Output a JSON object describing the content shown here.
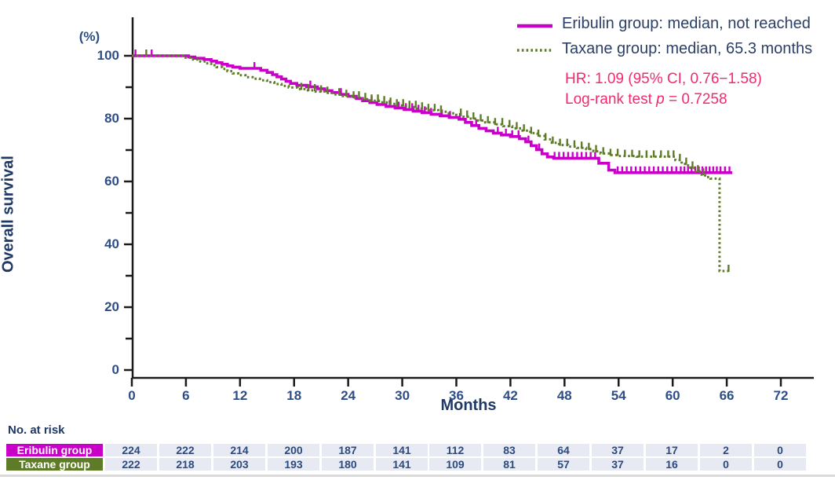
{
  "legend": {
    "items": [
      {
        "label": "Eribulin group: median, not reached"
      },
      {
        "label": "Taxane group: median, 65.3 months"
      }
    ]
  },
  "stats": {
    "hr": "HR: 1.09 (95% CI, 0.76−1.58)",
    "logrank_prefix": "Log-rank test ",
    "logrank_p": "p",
    "logrank_suffix": " = 0.7258"
  },
  "chart_data": {
    "type": "line",
    "subtype": "kaplan-meier-step",
    "ylabel": "Overall survival",
    "y_unit": "(%)",
    "xlabel": "Months",
    "xlim": [
      0,
      72
    ],
    "ylim": [
      0,
      100
    ],
    "x_ticks": [
      0,
      6,
      12,
      18,
      24,
      30,
      36,
      42,
      48,
      54,
      60,
      66,
      72
    ],
    "y_ticks": [
      0,
      20,
      40,
      60,
      80,
      100
    ],
    "y_minor_ticks": [
      10,
      30,
      50,
      70,
      90
    ],
    "grid": false,
    "legend_position": "top-right",
    "series": [
      {
        "name": "Eribulin group",
        "median": "not reached",
        "color": "#c800c8",
        "line_style": "solid",
        "steps": [
          [
            0,
            100
          ],
          [
            6.3,
            99.6
          ],
          [
            7,
            99.2
          ],
          [
            8,
            98.8
          ],
          [
            8.8,
            98.3
          ],
          [
            9.4,
            97.8
          ],
          [
            10,
            97.3
          ],
          [
            10.6,
            96.8
          ],
          [
            11.2,
            96.4
          ],
          [
            12,
            96
          ],
          [
            14.3,
            95.4
          ],
          [
            15,
            94.7
          ],
          [
            15.6,
            94
          ],
          [
            16.1,
            93.3
          ],
          [
            16.6,
            92.6
          ],
          [
            17.1,
            91.9
          ],
          [
            17.6,
            91.2
          ],
          [
            18.3,
            90.6
          ],
          [
            19.4,
            90.1
          ],
          [
            20.6,
            89.5
          ],
          [
            21.4,
            88.9
          ],
          [
            22.2,
            88.3
          ],
          [
            23.1,
            87.7
          ],
          [
            24,
            87.1
          ],
          [
            24.9,
            86.4
          ],
          [
            25.6,
            85.7
          ],
          [
            26.4,
            85.1
          ],
          [
            27.2,
            84.5
          ],
          [
            28.2,
            83.9
          ],
          [
            29.2,
            83.4
          ],
          [
            30.2,
            82.9
          ],
          [
            31.2,
            82.4
          ],
          [
            32.2,
            81.9
          ],
          [
            33.2,
            81.4
          ],
          [
            34.2,
            80.9
          ],
          [
            35.2,
            80.4
          ],
          [
            36.3,
            79.8
          ],
          [
            37,
            78.8
          ],
          [
            37.7,
            77.8
          ],
          [
            38.5,
            76.9
          ],
          [
            39.3,
            76.1
          ],
          [
            40.1,
            75.4
          ],
          [
            41,
            74.8
          ],
          [
            42,
            74.3
          ],
          [
            43,
            73.6
          ],
          [
            43.7,
            72.6
          ],
          [
            44.3,
            71.4
          ],
          [
            44.9,
            70.1
          ],
          [
            45.5,
            68.8
          ],
          [
            46.1,
            67.8
          ],
          [
            46.8,
            67.4
          ],
          [
            51.8,
            65.8
          ],
          [
            52.9,
            63.6
          ],
          [
            53.6,
            62.8
          ],
          [
            66.6,
            62.8
          ]
        ],
        "censors": [
          0.4,
          2.2,
          13.6,
          19.8,
          23.2,
          26.6,
          28.6,
          29.6,
          30.4,
          31.1,
          31.8,
          32.5,
          33.2,
          34.4,
          35.3,
          36.4,
          38.2,
          40.6,
          41.5,
          42.2,
          42.9,
          44,
          45.2,
          46.9,
          47.4,
          47.9,
          48.4,
          48.9,
          49.4,
          49.9,
          50.4,
          50.9,
          51.4,
          53.9,
          54.4,
          54.9,
          55.4,
          55.9,
          56.4,
          56.9,
          57.4,
          57.9,
          58.4,
          58.9,
          59.4,
          59.9,
          60.4,
          60.9,
          61.3,
          61.7,
          62.1,
          62.5,
          62.9,
          63.3,
          63.7,
          64.1,
          64.5,
          64.9,
          65.3,
          65.8,
          66.3
        ]
      },
      {
        "name": "Taxane group",
        "median": "65.3 months",
        "color": "#5e7c28",
        "line_style": "dotted",
        "steps": [
          [
            0,
            100
          ],
          [
            5.8,
            99.4
          ],
          [
            6.8,
            98.8
          ],
          [
            7.6,
            98.2
          ],
          [
            8.2,
            97.6
          ],
          [
            8.8,
            97
          ],
          [
            9.4,
            96.4
          ],
          [
            10,
            95.8
          ],
          [
            10.6,
            95.1
          ],
          [
            11.2,
            94.4
          ],
          [
            11.8,
            93.8
          ],
          [
            12.6,
            93.2
          ],
          [
            13.4,
            92.7
          ],
          [
            14.2,
            92.2
          ],
          [
            15,
            91.6
          ],
          [
            15.8,
            91
          ],
          [
            16.6,
            90.4
          ],
          [
            17.4,
            89.9
          ],
          [
            18.4,
            89.4
          ],
          [
            19.4,
            89
          ],
          [
            20.4,
            88.6
          ],
          [
            21.4,
            88.2
          ],
          [
            22.4,
            87.7
          ],
          [
            23.4,
            87.2
          ],
          [
            24.4,
            86.7
          ],
          [
            25.4,
            86.2
          ],
          [
            26.4,
            85.7
          ],
          [
            27.4,
            85.2
          ],
          [
            28.4,
            84.7
          ],
          [
            29.4,
            84.2
          ],
          [
            30.4,
            83.7
          ],
          [
            31.6,
            83.2
          ],
          [
            32.8,
            82.7
          ],
          [
            34,
            82.2
          ],
          [
            35,
            81.7
          ],
          [
            36,
            81.2
          ],
          [
            36.8,
            80.6
          ],
          [
            37.6,
            80
          ],
          [
            38.4,
            79.4
          ],
          [
            39.2,
            78.8
          ],
          [
            40.2,
            78.2
          ],
          [
            41.2,
            77.6
          ],
          [
            42.2,
            76.9
          ],
          [
            43.2,
            76.2
          ],
          [
            44.2,
            75.4
          ],
          [
            45,
            74.5
          ],
          [
            45.8,
            73.4
          ],
          [
            46.6,
            72.3
          ],
          [
            47.4,
            71.6
          ],
          [
            48.4,
            71.1
          ],
          [
            49.4,
            70.7
          ],
          [
            50.4,
            70.3
          ],
          [
            51.2,
            69.6
          ],
          [
            52,
            68.9
          ],
          [
            53,
            68.4
          ],
          [
            54,
            68.1
          ],
          [
            56,
            67.9
          ],
          [
            60.3,
            66.8
          ],
          [
            61,
            65.6
          ],
          [
            61.7,
            64.4
          ],
          [
            62.4,
            63.2
          ],
          [
            63,
            62.2
          ],
          [
            63.6,
            61.4
          ],
          [
            64.2,
            60.9
          ],
          [
            65.2,
            31.5
          ],
          [
            66.2,
            31.5
          ]
        ],
        "censors": [
          1.6,
          18.8,
          19.6,
          20.3,
          21,
          21.7,
          23,
          23.8,
          24.6,
          25.2,
          25.9,
          26.6,
          27.3,
          28,
          28.7,
          29.4,
          30.1,
          30.8,
          31.5,
          32.2,
          32.9,
          33.6,
          34.3,
          36.5,
          37.2,
          37.9,
          38.7,
          39.5,
          40.3,
          41.1,
          41.9,
          42.7,
          43.5,
          44.3,
          45.1,
          45.9,
          46.7,
          47.5,
          48.3,
          49.1,
          49.9,
          50.7,
          51.5,
          52.3,
          53.1,
          53.9,
          54.7,
          55.5,
          56.3,
          57.1,
          57.9,
          58.7,
          59.5,
          60.1,
          60.8,
          61.5,
          62.2,
          62.8,
          63.4,
          66.2
        ]
      }
    ],
    "annotations": [
      "HR: 1.09 (95% CI, 0.76−1.58)",
      "Log-rank test p = 0.7258"
    ]
  },
  "at_risk": {
    "header": "No. at risk",
    "rows": [
      {
        "label": "Eribulin group",
        "bg": "#c800c8",
        "values": [
          224,
          222,
          214,
          200,
          187,
          141,
          112,
          83,
          64,
          37,
          17,
          2,
          0
        ]
      },
      {
        "label": "Taxane group",
        "bg": "#5e7c28",
        "values": [
          222,
          218,
          203,
          193,
          180,
          141,
          109,
          81,
          57,
          37,
          16,
          0,
          0
        ]
      }
    ]
  },
  "colors": {
    "axis": "#1a1a1a",
    "tick_text": "#2e4e86",
    "title_text": "#1f3864",
    "legend_text": "#2b3f66",
    "stats_text": "#f42a6f",
    "cell_bg": "#e7eaf3"
  }
}
